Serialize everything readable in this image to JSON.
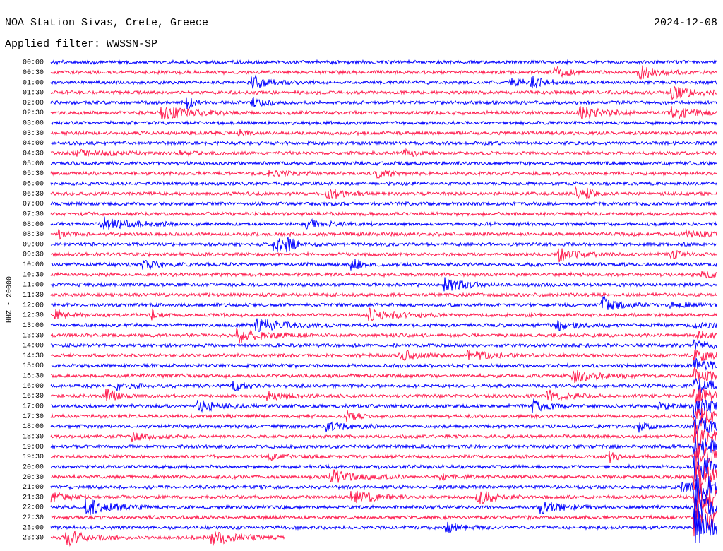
{
  "header": {
    "station": "NOA Station Sivas, Crete, Greece",
    "date": "2024-12-08",
    "filter": "Applied filter: WWSSN-SP"
  },
  "axis_label": "HHZ - 20000",
  "row_labels": [
    "00:00",
    "00:30",
    "01:00",
    "01:30",
    "02:00",
    "02:30",
    "03:00",
    "03:30",
    "04:00",
    "04:30",
    "05:00",
    "05:30",
    "06:00",
    "06:30",
    "07:00",
    "07:30",
    "08:00",
    "08:30",
    "09:00",
    "09:30",
    "10:00",
    "10:30",
    "11:00",
    "11:30",
    "12:00",
    "12:30",
    "13:00",
    "13:30",
    "14:00",
    "14:30",
    "15:00",
    "15:30",
    "16:00",
    "16:30",
    "17:00",
    "17:30",
    "18:00",
    "18:30",
    "19:00",
    "19:30",
    "20:00",
    "20:30",
    "21:00",
    "21:30",
    "22:00",
    "22:30",
    "23:00",
    "23:30"
  ],
  "trace_colors": [
    "#0000ff",
    "#ff1a4d"
  ]
}
